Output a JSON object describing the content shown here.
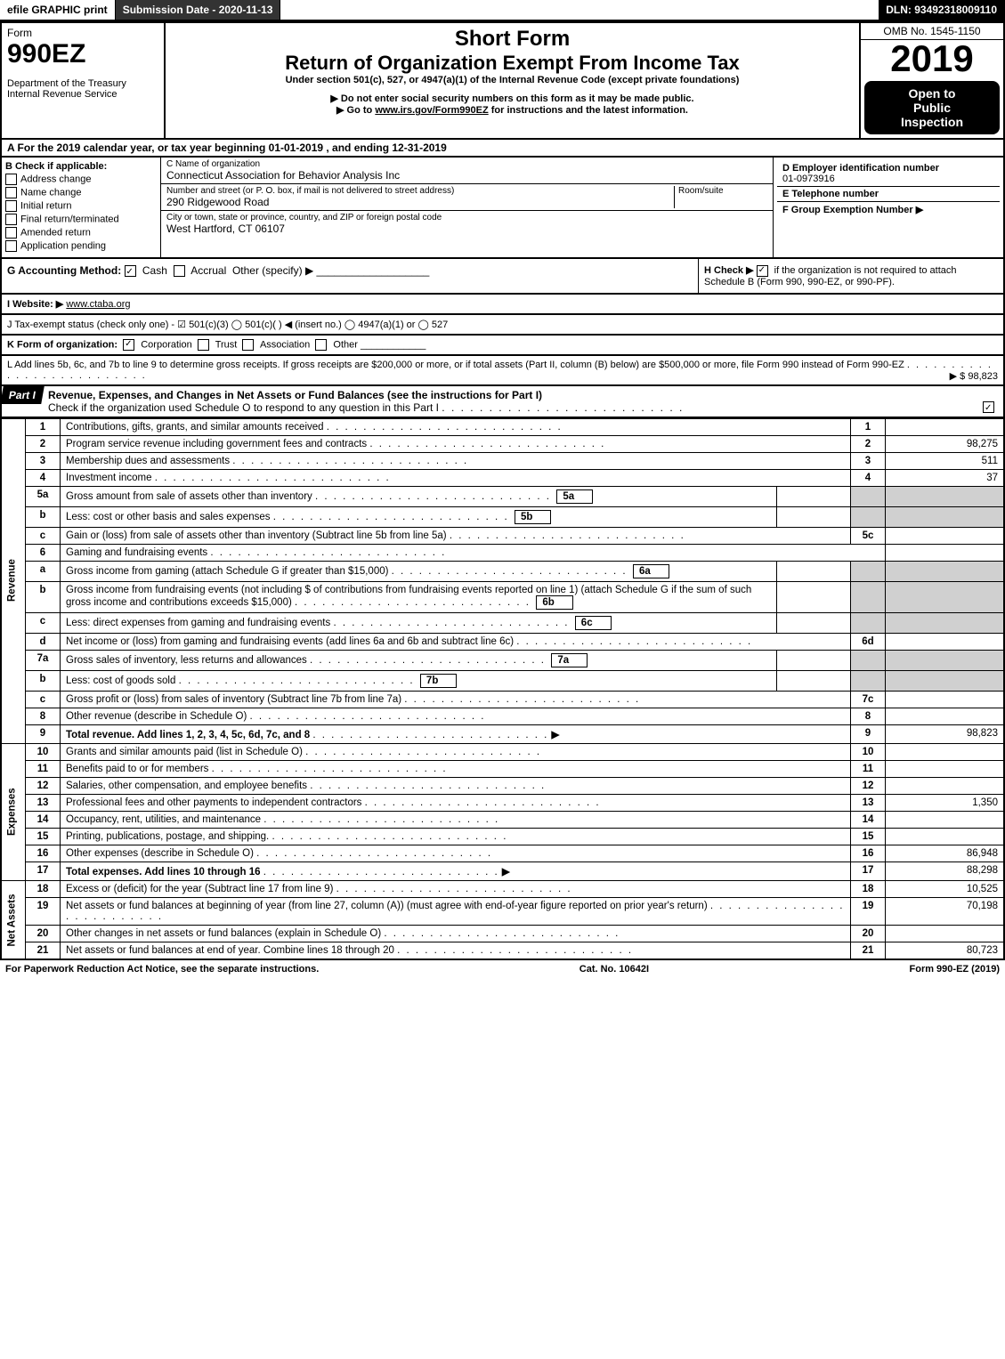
{
  "topbar": {
    "efile": "efile GRAPHIC print",
    "submission": "Submission Date - 2020-11-13",
    "dln": "DLN: 93492318009110"
  },
  "header": {
    "form_label": "Form",
    "form_number": "990EZ",
    "department": "Department of the Treasury",
    "irs": "Internal Revenue Service",
    "short_form": "Short Form",
    "main_title": "Return of Organization Exempt From Income Tax",
    "under_section": "Under section 501(c), 527, or 4947(a)(1) of the Internal Revenue Code (except private foundations)",
    "no_ssn": "▶ Do not enter social security numbers on this form as it may be made public.",
    "goto": "▶ Go to www.irs.gov/Form990EZ for instructions and the latest information.",
    "goto_url": "www.irs.gov/Form990EZ",
    "omb": "OMB No. 1545-1150",
    "year": "2019",
    "inspection_l1": "Open to",
    "inspection_l2": "Public",
    "inspection_l3": "Inspection"
  },
  "section_a": "A  For the 2019 calendar year, or tax year beginning 01-01-2019 , and ending 12-31-2019",
  "box_b": {
    "label": "B  Check if applicable:",
    "items": [
      "Address change",
      "Name change",
      "Initial return",
      "Final return/terminated",
      "Amended return",
      "Application pending"
    ]
  },
  "box_c": {
    "name_label": "C Name of organization",
    "name": "Connecticut Association for Behavior Analysis Inc",
    "street_label": "Number and street (or P. O. box, if mail is not delivered to street address)",
    "room_label": "Room/suite",
    "street": "290 Ridgewood Road",
    "city_label": "City or town, state or province, country, and ZIP or foreign postal code",
    "city": "West Hartford, CT  06107"
  },
  "box_d": {
    "label": "D Employer identification number",
    "value": "01-0973916",
    "e_label": "E Telephone number",
    "f_label": "F Group Exemption Number  ▶"
  },
  "g_line": {
    "label": "G Accounting Method:",
    "cash": "Cash",
    "accrual": "Accrual",
    "other": "Other (specify) ▶"
  },
  "h_line": {
    "label": "H  Check ▶",
    "text": "if the organization is not required to attach Schedule B (Form 990, 990-EZ, or 990-PF)."
  },
  "i_line": {
    "label": "I Website: ▶",
    "value": "www.ctaba.org"
  },
  "j_line": "J Tax-exempt status (check only one) - ☑ 501(c)(3)  ◯ 501(c)(  ) ◀ (insert no.)  ◯ 4947(a)(1) or  ◯ 527",
  "k_line": {
    "label": "K Form of organization:",
    "corp": "Corporation",
    "trust": "Trust",
    "assoc": "Association",
    "other": "Other"
  },
  "l_line": {
    "text": "L Add lines 5b, 6c, and 7b to line 9 to determine gross receipts. If gross receipts are $200,000 or more, or if total assets (Part II, column (B) below) are $500,000 or more, file Form 990 instead of Form 990-EZ",
    "amount": "▶ $ 98,823"
  },
  "part1": {
    "label": "Part I",
    "title": "Revenue, Expenses, and Changes in Net Assets or Fund Balances (see the instructions for Part I)",
    "check_text": "Check if the organization used Schedule O to respond to any question in this Part I",
    "checked": true
  },
  "sections": {
    "revenue": "Revenue",
    "expenses": "Expenses",
    "netassets": "Net Assets"
  },
  "rows": [
    {
      "sec": "revenue",
      "n": "1",
      "desc": "Contributions, gifts, grants, and similar amounts received",
      "r": "1",
      "amt": ""
    },
    {
      "sec": "revenue",
      "n": "2",
      "desc": "Program service revenue including government fees and contracts",
      "r": "2",
      "amt": "98,275"
    },
    {
      "sec": "revenue",
      "n": "3",
      "desc": "Membership dues and assessments",
      "r": "3",
      "amt": "511"
    },
    {
      "sec": "revenue",
      "n": "4",
      "desc": "Investment income",
      "r": "4",
      "amt": "37"
    },
    {
      "sec": "revenue",
      "n": "5a",
      "desc": "Gross amount from sale of assets other than inventory",
      "inner": "5a",
      "shaded": true
    },
    {
      "sec": "revenue",
      "n": "b",
      "desc": "Less: cost or other basis and sales expenses",
      "inner": "5b",
      "shaded": true
    },
    {
      "sec": "revenue",
      "n": "c",
      "desc": "Gain or (loss) from sale of assets other than inventory (Subtract line 5b from line 5a)",
      "r": "5c",
      "amt": ""
    },
    {
      "sec": "revenue",
      "n": "6",
      "desc": "Gaming and fundraising events",
      "noright": true
    },
    {
      "sec": "revenue",
      "n": "a",
      "desc": "Gross income from gaming (attach Schedule G if greater than $15,000)",
      "inner": "6a",
      "shaded": true
    },
    {
      "sec": "revenue",
      "n": "b",
      "desc": "Gross income from fundraising events (not including $                          of contributions from fundraising events reported on line 1) (attach Schedule G if the sum of such gross income and contributions exceeds $15,000)",
      "inner": "6b",
      "shaded": true
    },
    {
      "sec": "revenue",
      "n": "c",
      "desc": "Less: direct expenses from gaming and fundraising events",
      "inner": "6c",
      "shaded": true
    },
    {
      "sec": "revenue",
      "n": "d",
      "desc": "Net income or (loss) from gaming and fundraising events (add lines 6a and 6b and subtract line 6c)",
      "r": "6d",
      "amt": ""
    },
    {
      "sec": "revenue",
      "n": "7a",
      "desc": "Gross sales of inventory, less returns and allowances",
      "inner": "7a",
      "shaded": true
    },
    {
      "sec": "revenue",
      "n": "b",
      "desc": "Less: cost of goods sold",
      "inner": "7b",
      "shaded": true
    },
    {
      "sec": "revenue",
      "n": "c",
      "desc": "Gross profit or (loss) from sales of inventory (Subtract line 7b from line 7a)",
      "r": "7c",
      "amt": ""
    },
    {
      "sec": "revenue",
      "n": "8",
      "desc": "Other revenue (describe in Schedule O)",
      "r": "8",
      "amt": ""
    },
    {
      "sec": "revenue",
      "n": "9",
      "desc": "Total revenue. Add lines 1, 2, 3, 4, 5c, 6d, 7c, and 8",
      "r": "9",
      "amt": "98,823",
      "bold": true,
      "arrow": true
    },
    {
      "sec": "expenses",
      "n": "10",
      "desc": "Grants and similar amounts paid (list in Schedule O)",
      "r": "10",
      "amt": ""
    },
    {
      "sec": "expenses",
      "n": "11",
      "desc": "Benefits paid to or for members",
      "r": "11",
      "amt": ""
    },
    {
      "sec": "expenses",
      "n": "12",
      "desc": "Salaries, other compensation, and employee benefits",
      "r": "12",
      "amt": ""
    },
    {
      "sec": "expenses",
      "n": "13",
      "desc": "Professional fees and other payments to independent contractors",
      "r": "13",
      "amt": "1,350"
    },
    {
      "sec": "expenses",
      "n": "14",
      "desc": "Occupancy, rent, utilities, and maintenance",
      "r": "14",
      "amt": ""
    },
    {
      "sec": "expenses",
      "n": "15",
      "desc": "Printing, publications, postage, and shipping.",
      "r": "15",
      "amt": ""
    },
    {
      "sec": "expenses",
      "n": "16",
      "desc": "Other expenses (describe in Schedule O)",
      "r": "16",
      "amt": "86,948"
    },
    {
      "sec": "expenses",
      "n": "17",
      "desc": "Total expenses. Add lines 10 through 16",
      "r": "17",
      "amt": "88,298",
      "bold": true,
      "arrow": true
    },
    {
      "sec": "netassets",
      "n": "18",
      "desc": "Excess or (deficit) for the year (Subtract line 17 from line 9)",
      "r": "18",
      "amt": "10,525"
    },
    {
      "sec": "netassets",
      "n": "19",
      "desc": "Net assets or fund balances at beginning of year (from line 27, column (A)) (must agree with end-of-year figure reported on prior year's return)",
      "r": "19",
      "amt": "70,198"
    },
    {
      "sec": "netassets",
      "n": "20",
      "desc": "Other changes in net assets or fund balances (explain in Schedule O)",
      "r": "20",
      "amt": ""
    },
    {
      "sec": "netassets",
      "n": "21",
      "desc": "Net assets or fund balances at end of year. Combine lines 18 through 20",
      "r": "21",
      "amt": "80,723"
    }
  ],
  "footer": {
    "left": "For Paperwork Reduction Act Notice, see the separate instructions.",
    "center": "Cat. No. 10642I",
    "right": "Form 990-EZ (2019)"
  }
}
